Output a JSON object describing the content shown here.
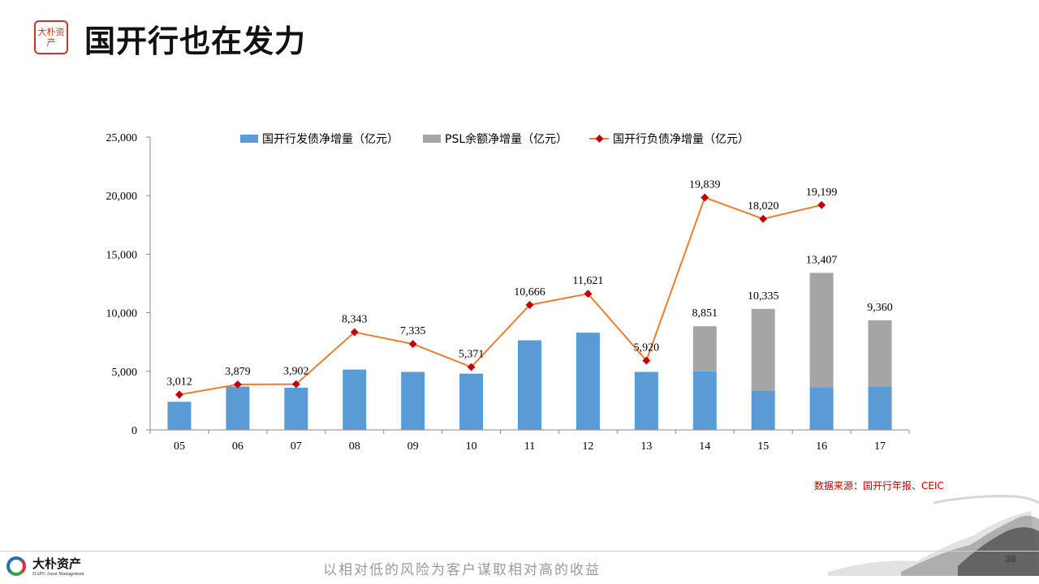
{
  "header": {
    "title": "国开行也在发力",
    "seal_text": "大朴资产"
  },
  "chart_data": {
    "type": "bar",
    "categories": [
      "05",
      "06",
      "07",
      "08",
      "09",
      "10",
      "11",
      "12",
      "13",
      "14",
      "15",
      "16",
      "17"
    ],
    "ylim": [
      0,
      25000
    ],
    "yticks": [
      0,
      5000,
      10000,
      15000,
      20000,
      25000
    ],
    "ytick_labels": [
      "0",
      "5,000",
      "10,000",
      "15,000",
      "20,000",
      "25,000"
    ],
    "grid": false,
    "legend_position": "top",
    "stacked": true,
    "series": [
      {
        "name": "国开行发债净增量（亿元）",
        "kind": "bar",
        "color": "#5b9bd5",
        "values": [
          2400,
          3700,
          3600,
          5150,
          4950,
          4800,
          7650,
          8300,
          4950,
          5000,
          3350,
          3650,
          3700
        ]
      },
      {
        "name": "PSL余额净增量（亿元）",
        "kind": "bar",
        "color": "#a5a5a5",
        "values": [
          0,
          0,
          0,
          0,
          0,
          0,
          0,
          0,
          0,
          3851,
          6985,
          9757,
          5660
        ]
      },
      {
        "name": "国开行负债净增量（亿元）",
        "kind": "line",
        "color": "#ed7d31",
        "marker_color": "#c00000",
        "values": [
          3012,
          3879,
          3902,
          8343,
          7335,
          5371,
          10666,
          11621,
          5920,
          19839,
          18020,
          19199,
          null
        ]
      }
    ],
    "bar_total_labels": [
      "",
      "",
      "",
      "",
      "",
      "",
      "",
      "",
      "",
      "8,851",
      "10,335",
      "13,407",
      "9,360"
    ],
    "line_labels": [
      "3,012",
      "3,879",
      "3,902",
      "8,343",
      "7,335",
      "5,371",
      "10,666",
      "11,621",
      "5,920",
      "19,839",
      "18,020",
      "19,199",
      ""
    ]
  },
  "source_note": "数据来源：国开行年报、CEIC",
  "footer": {
    "company_cn": "大朴资产",
    "company_en": "DAPU Asset Management",
    "slogan": "以相对低的风险为客户谋取相对高的收益",
    "page_number": "38"
  }
}
